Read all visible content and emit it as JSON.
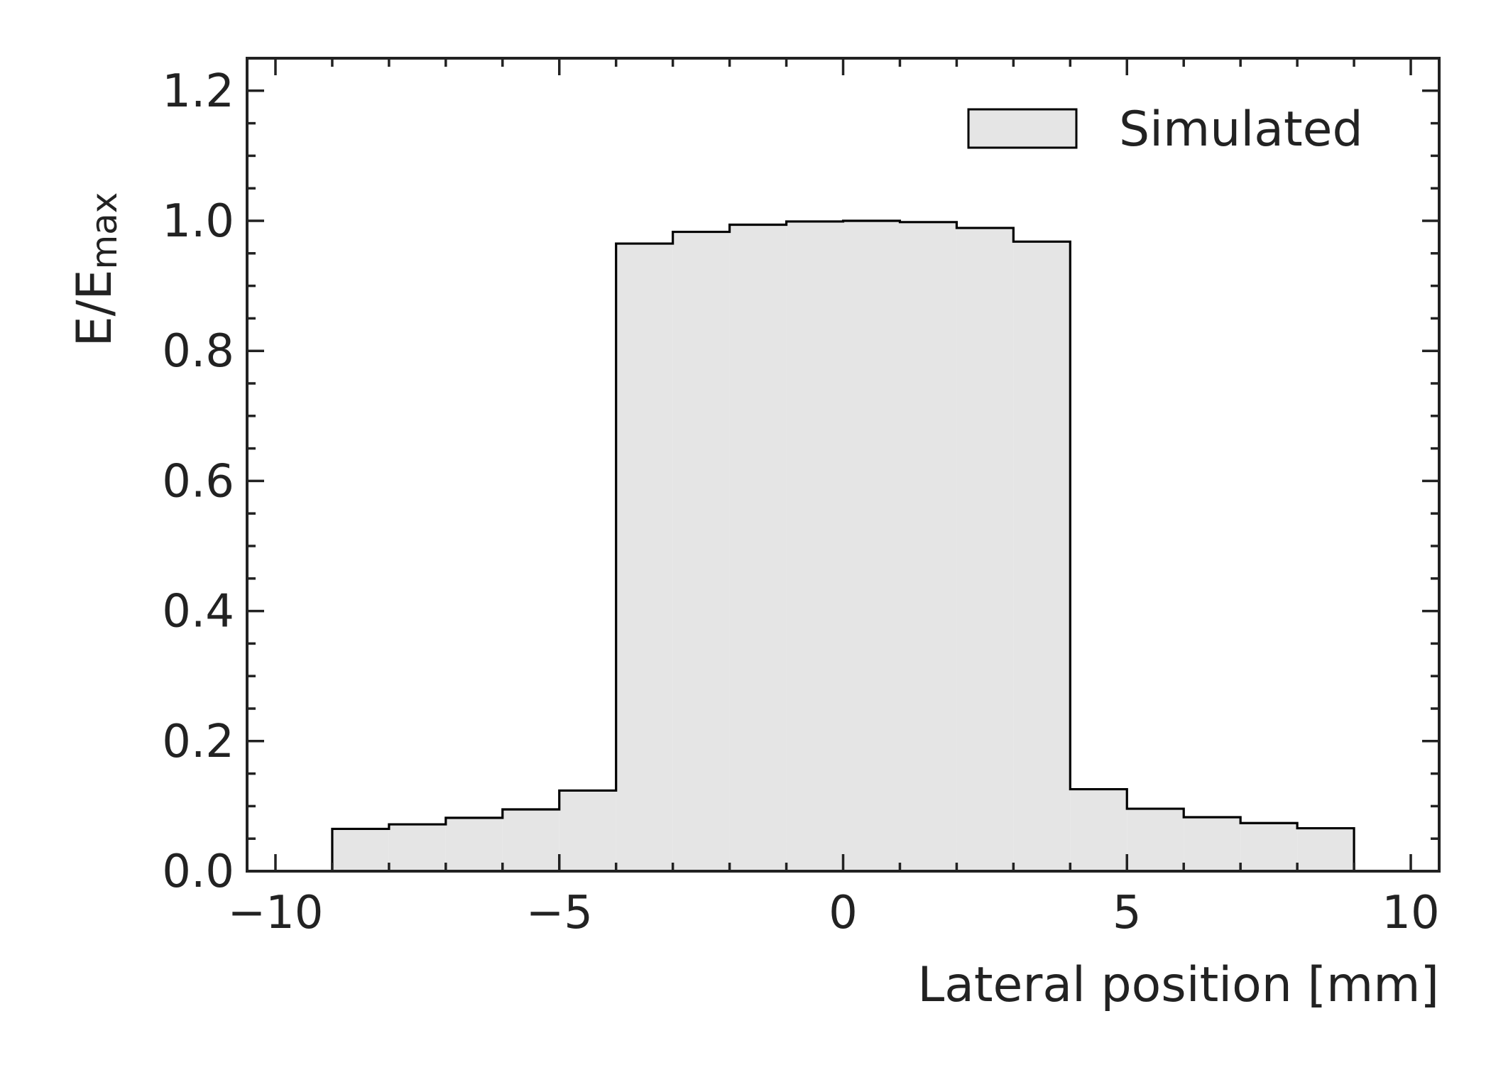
{
  "chart_data": {
    "type": "histogram",
    "xlabel": "Lateral position [mm]",
    "ylabel_main": "E/E",
    "ylabel_sub": "max",
    "xlim": [
      -10.5,
      10.5
    ],
    "ylim": [
      0,
      1.25
    ],
    "x_ticks": [
      -10,
      -5,
      0,
      5,
      10
    ],
    "x_tick_labels": [
      "−10",
      "−5",
      "0",
      "5",
      "10"
    ],
    "y_ticks": [
      0.0,
      0.2,
      0.4,
      0.6,
      0.8,
      1.0,
      1.2
    ],
    "y_tick_labels": [
      "0.0",
      "0.2",
      "0.4",
      "0.6",
      "0.8",
      "1.0",
      "1.2"
    ],
    "x_minor_step": 1,
    "y_minor_step": 0.05,
    "legend_position": "top-right",
    "series": [
      {
        "name": "Simulated",
        "fill": "#e5e5e5",
        "edge": "#000000",
        "bin_edges": [
          -9,
          -8,
          -7,
          -6,
          -5,
          -4,
          -3,
          -2,
          -1,
          0,
          1,
          2,
          3,
          4,
          5,
          6,
          7,
          8,
          9
        ],
        "values": [
          0.065,
          0.072,
          0.082,
          0.095,
          0.124,
          0.965,
          0.983,
          0.994,
          0.999,
          1.0,
          0.998,
          0.989,
          0.968,
          0.126,
          0.096,
          0.083,
          0.074,
          0.066
        ]
      }
    ]
  }
}
